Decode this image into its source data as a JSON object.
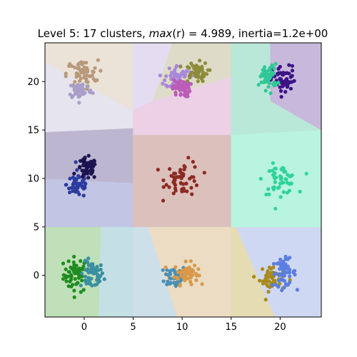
{
  "chart_data": {
    "type": "scatter",
    "title": "Level 5: 17 clusters, max(r) = 4.989, inertia=1.2e+00",
    "title_parts": {
      "prefix": "Level 5: 17 clusters, ",
      "italic": "max",
      "mid": "(r) = 4.989, inertia=1.2e+00"
    },
    "xlabel": "",
    "ylabel": "",
    "xlim": [
      -4,
      24.2
    ],
    "ylim": [
      -4.3,
      24
    ],
    "xticks": [
      0,
      5,
      10,
      15,
      20
    ],
    "yticks": [
      0,
      5,
      10,
      15,
      20
    ],
    "grid": false,
    "points_per_cluster": 55,
    "clusters": [
      {
        "center": [
          -0.8,
          0.1
        ],
        "spread": [
          0.65,
          0.9
        ],
        "color": "#1e8c1e"
      },
      {
        "center": [
          0.8,
          0.0
        ],
        "spread": [
          0.6,
          0.7
        ],
        "color": "#3a8fa0"
      },
      {
        "center": [
          9.3,
          -0.1
        ],
        "spread": [
          0.55,
          0.6
        ],
        "color": "#4a8fb5"
      },
      {
        "center": [
          10.4,
          0.2
        ],
        "spread": [
          0.6,
          0.55
        ],
        "color": "#d89a4a"
      },
      {
        "center": [
          19.2,
          -0.3
        ],
        "spread": [
          0.65,
          0.65
        ],
        "color": "#a88a1a"
      },
      {
        "center": [
          20.4,
          0.3
        ],
        "spread": [
          0.6,
          0.7
        ],
        "color": "#5a7ee0"
      },
      {
        "center": [
          -0.6,
          9.4
        ],
        "spread": [
          0.6,
          0.7
        ],
        "color": "#2b3c9e"
      },
      {
        "center": [
          0.3,
          11.0
        ],
        "spread": [
          0.5,
          0.55
        ],
        "color": "#1a1450"
      },
      {
        "center": [
          10.1,
          10.0
        ],
        "spread": [
          0.9,
          0.9
        ],
        "color": "#8c2a22"
      },
      {
        "center": [
          20.0,
          9.9
        ],
        "spread": [
          0.85,
          0.75
        ],
        "color": "#2fd39a"
      },
      {
        "center": [
          -0.2,
          20.8
        ],
        "spread": [
          0.8,
          0.7
        ],
        "color": "#b8997a"
      },
      {
        "center": [
          -0.4,
          19.1
        ],
        "spread": [
          0.6,
          0.45
        ],
        "color": "#a89ec8"
      },
      {
        "center": [
          9.5,
          20.5
        ],
        "spread": [
          0.6,
          0.6
        ],
        "color": "#a888d8"
      },
      {
        "center": [
          11.4,
          21.0
        ],
        "spread": [
          0.6,
          0.5
        ],
        "color": "#8c8c3c"
      },
      {
        "center": [
          9.9,
          19.3
        ],
        "spread": [
          0.45,
          0.45
        ],
        "color": "#bb5cb8"
      },
      {
        "center": [
          20.4,
          20.1
        ],
        "spread": [
          0.6,
          0.75
        ],
        "color": "#3c1285"
      },
      {
        "center": [
          18.8,
          20.5
        ],
        "spread": [
          0.45,
          0.65
        ],
        "color": "#2fc896"
      }
    ],
    "regions": [
      {
        "color": "#bfe0b8",
        "polygon": [
          [
            -4,
            -4.3
          ],
          [
            1.5,
            -4.3
          ],
          [
            1.7,
            5
          ],
          [
            -4,
            5
          ]
        ]
      },
      {
        "color": "#c5e0e4",
        "polygon": [
          [
            1.5,
            -4.3
          ],
          [
            5,
            -4.3
          ],
          [
            5,
            5
          ],
          [
            1.7,
            5
          ]
        ]
      },
      {
        "color": "#cde0ea",
        "polygon": [
          [
            5,
            -4.3
          ],
          [
            9.5,
            -4.3
          ],
          [
            6.5,
            5
          ],
          [
            5,
            5
          ]
        ]
      },
      {
        "color": "#ecdcc4",
        "polygon": [
          [
            9.5,
            -4.3
          ],
          [
            15,
            -4.3
          ],
          [
            15,
            5
          ],
          [
            6.5,
            5
          ]
        ]
      },
      {
        "color": "#e6dcb4",
        "polygon": [
          [
            15,
            -4.3
          ],
          [
            19.5,
            -4.3
          ],
          [
            15.5,
            5
          ],
          [
            15,
            5
          ]
        ]
      },
      {
        "color": "#cfd8f3",
        "polygon": [
          [
            19.5,
            -4.3
          ],
          [
            24.2,
            -4.3
          ],
          [
            24.2,
            5
          ],
          [
            15.5,
            5
          ]
        ]
      },
      {
        "color": "#c2c6e4",
        "polygon": [
          [
            -4,
            5
          ],
          [
            5,
            5
          ],
          [
            5.5,
            9.5
          ],
          [
            -4,
            10
          ]
        ]
      },
      {
        "color": "#bdb6d0",
        "polygon": [
          [
            -4,
            10
          ],
          [
            5.5,
            9.5
          ],
          [
            5,
            15.2
          ],
          [
            -4,
            14.8
          ]
        ]
      },
      {
        "color": "#dcc0bc",
        "polygon": [
          [
            5,
            5
          ],
          [
            15,
            5
          ],
          [
            15,
            14.5
          ],
          [
            5,
            14.5
          ]
        ]
      },
      {
        "color": "#b8f4e0",
        "polygon": [
          [
            15,
            5
          ],
          [
            24.2,
            5
          ],
          [
            24.2,
            15
          ],
          [
            15,
            14.5
          ]
        ]
      },
      {
        "color": "#e6e4ee",
        "polygon": [
          [
            -4,
            14.8
          ],
          [
            5,
            15.2
          ],
          [
            5,
            17
          ],
          [
            -4,
            22
          ]
        ]
      },
      {
        "color": "#ebe2d8",
        "polygon": [
          [
            -4,
            22
          ],
          [
            5,
            17
          ],
          [
            5,
            24
          ],
          [
            -4,
            24
          ]
        ]
      },
      {
        "color": "#e4ddf2",
        "polygon": [
          [
            5,
            17
          ],
          [
            7,
            18
          ],
          [
            9,
            24
          ],
          [
            5,
            24
          ]
        ]
      },
      {
        "color": "#dedcc8",
        "polygon": [
          [
            9,
            24
          ],
          [
            7,
            18
          ],
          [
            15,
            20.5
          ],
          [
            15,
            24
          ]
        ]
      },
      {
        "color": "#ecd0e6",
        "polygon": [
          [
            5,
            14.5
          ],
          [
            15,
            14.5
          ],
          [
            15,
            20.5
          ],
          [
            7,
            18
          ],
          [
            5,
            17
          ]
        ]
      },
      {
        "color": "#bae8d8",
        "polygon": [
          [
            15,
            14.5
          ],
          [
            24.2,
            15
          ],
          [
            19,
            18
          ],
          [
            19,
            24
          ],
          [
            15,
            24
          ]
        ]
      },
      {
        "color": "#c8b8dc",
        "polygon": [
          [
            19,
            24
          ],
          [
            19,
            18
          ],
          [
            24.2,
            15
          ],
          [
            24.2,
            24
          ]
        ]
      }
    ]
  }
}
